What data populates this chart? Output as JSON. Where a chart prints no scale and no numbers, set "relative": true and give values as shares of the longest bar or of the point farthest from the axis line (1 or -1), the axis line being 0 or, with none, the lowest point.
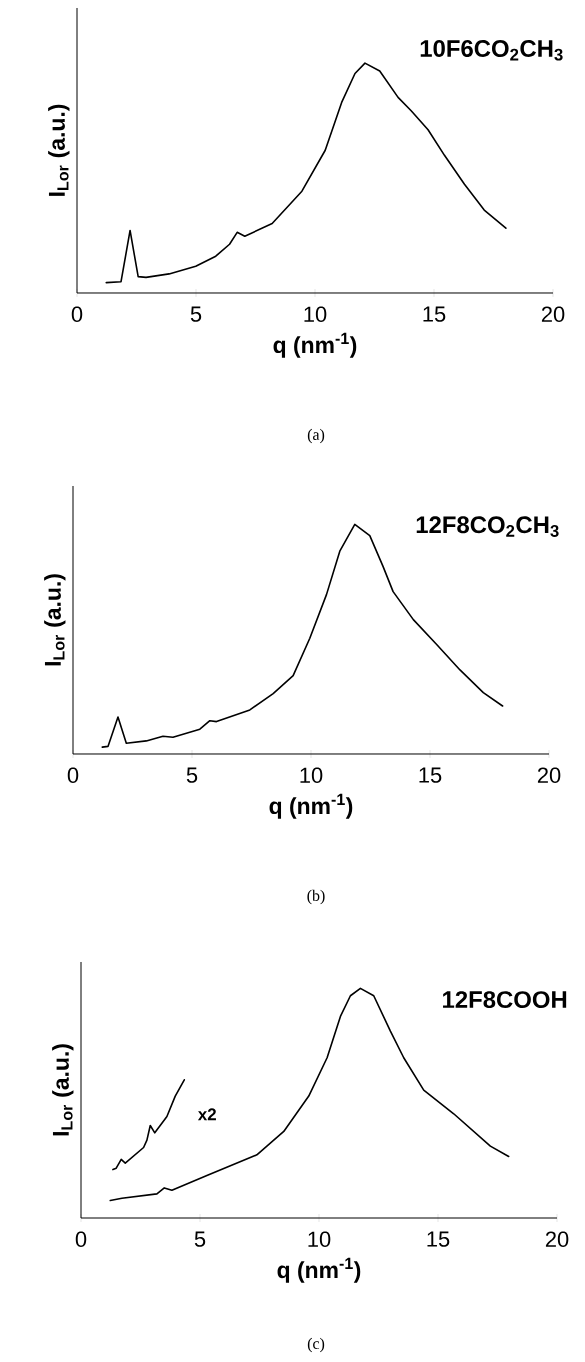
{
  "chart_data": [
    {
      "type": "line",
      "relative": true,
      "xlim": [
        0,
        20
      ],
      "xticks": [
        0,
        5,
        10,
        15,
        20
      ],
      "xlabel": "q (nm$^{-1}$)",
      "ylabel": "I$_{Lor}$ (a.u.)",
      "annotations": [
        "10F6CO$_{2}$CH$_{3}$",
        "(a)"
      ],
      "series": [
        {
          "color": "#000000",
          "x": [
            1.23,
            1.85,
            2.23,
            2.57,
            2.9,
            3.87,
            4.99,
            5.83,
            6.41,
            6.73,
            7.05,
            8.2,
            9.45,
            10.43,
            11.12,
            11.68,
            12.1,
            12.72,
            13.49,
            14.05,
            14.75,
            15.44,
            16.28,
            17.11,
            18.02
          ],
          "values": [
            0.045,
            0.049,
            0.272,
            0.071,
            0.068,
            0.083,
            0.116,
            0.16,
            0.212,
            0.264,
            0.247,
            0.302,
            0.443,
            0.621,
            0.829,
            0.955,
            1.0,
            0.966,
            0.851,
            0.792,
            0.71,
            0.599,
            0.473,
            0.361,
            0.282
          ]
        }
      ]
    },
    {
      "type": "line",
      "relative": true,
      "xlim": [
        0,
        20
      ],
      "xticks": [
        0,
        5,
        10,
        15,
        20
      ],
      "xlabel": "q (nm$^{-1}$)",
      "ylabel": "I$_{Lor}$ (a.u.)",
      "annotations": [
        "12F8CO$_{2}$CH$_{3}$",
        "(b)"
      ],
      "series": [
        {
          "color": "#000000",
          "x": [
            1.23,
            1.47,
            1.89,
            2.24,
            3.08,
            3.78,
            4.2,
            5.33,
            5.75,
            6.03,
            7.43,
            8.41,
            9.25,
            9.95,
            10.65,
            11.21,
            11.84,
            12.47,
            13.03,
            13.45,
            14.3,
            15.28,
            16.26,
            17.24,
            18.05
          ],
          "values": [
            0.03,
            0.033,
            0.161,
            0.047,
            0.057,
            0.077,
            0.073,
            0.108,
            0.145,
            0.141,
            0.192,
            0.263,
            0.341,
            0.504,
            0.694,
            0.883,
            1.0,
            0.951,
            0.816,
            0.707,
            0.585,
            0.477,
            0.366,
            0.267,
            0.209
          ]
        }
      ]
    },
    {
      "type": "line",
      "relative": true,
      "xlim": [
        0,
        20
      ],
      "xticks": [
        0,
        5,
        10,
        15,
        20
      ],
      "xlabel": "q (nm$^{-1}$)",
      "ylabel": "I$_{Lor}$ (a.u.)",
      "annotations": [
        "12F8COOH",
        "(c)"
      ],
      "series": [
        {
          "color": "#000000",
          "x": [
            1.23,
            1.72,
            3.19,
            3.5,
            3.82,
            5.29,
            7.39,
            8.52,
            9.57,
            10.34,
            10.9,
            11.32,
            11.74,
            12.3,
            13.0,
            13.56,
            14.4,
            15.66,
            17.2,
            17.97
          ],
          "values": [
            0.076,
            0.086,
            0.105,
            0.131,
            0.121,
            0.185,
            0.275,
            0.377,
            0.531,
            0.698,
            0.878,
            0.968,
            1.0,
            0.968,
            0.814,
            0.698,
            0.557,
            0.454,
            0.313,
            0.268
          ]
        },
        {
          "name": "x2",
          "color": "#000000",
          "x": [
            1.34,
            1.48,
            1.69,
            1.86,
            2.63,
            2.77,
            2.91,
            3.1,
            3.61,
            3.96,
            4.34
          ],
          "values": [
            0.211,
            0.217,
            0.255,
            0.239,
            0.307,
            0.339,
            0.403,
            0.371,
            0.442,
            0.531,
            0.602
          ]
        }
      ]
    }
  ]
}
